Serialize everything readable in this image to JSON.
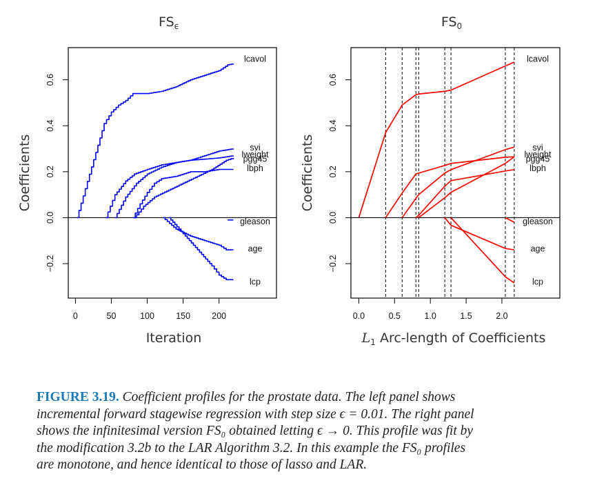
{
  "figure": {
    "caption_label": "FIGURE 3.19.",
    "caption_lines": [
      " Coefficient profiles for the prostate data. The left panel shows",
      "incremental forward stagewise regression with step size ϵ = 0.01. The right panel",
      "shows the infinitesimal version FS₀ obtained letting ϵ → 0. This profile was fit by",
      "the modification 3.2b to the LAR Algorithm 3.2. In this example the FS₀ profiles",
      "are monotone, and hence identical to those of lasso and LAR."
    ]
  },
  "chart_data": [
    {
      "type": "line",
      "style": "step",
      "title": "FSϵ",
      "title_main": "FS",
      "title_sub": "ϵ",
      "xlabel": "Iteration",
      "ylabel": "Coefficients",
      "xlim": [
        -10,
        280
      ],
      "ylim": [
        -0.35,
        0.74
      ],
      "xticks": [
        0,
        50,
        100,
        150,
        200
      ],
      "xtick_labels": [
        "0",
        "50",
        "100",
        "150",
        "200"
      ],
      "yticks": [
        -0.2,
        0.0,
        0.2,
        0.4,
        0.6
      ],
      "ytick_labels": [
        "-0.2",
        "0.0",
        "0.2",
        "0.4",
        "0.6"
      ],
      "color": "#0000ff",
      "hline_zero": true,
      "series": [
        {
          "name": "lcavol",
          "label_y": 0.69,
          "x": [
            2,
            40,
            50,
            60,
            70,
            80,
            100,
            120,
            140,
            160,
            180,
            200,
            212,
            220
          ],
          "y": [
            0.0,
            0.41,
            0.46,
            0.49,
            0.51,
            0.54,
            0.54,
            0.55,
            0.57,
            0.6,
            0.62,
            0.64,
            0.665,
            0.67
          ]
        },
        {
          "name": "svi",
          "label_y": 0.305,
          "x": [
            55,
            70,
            85,
            100,
            120,
            140,
            160,
            180,
            200,
            220
          ],
          "y": [
            0.0,
            0.09,
            0.15,
            0.19,
            0.22,
            0.24,
            0.25,
            0.27,
            0.29,
            0.3
          ]
        },
        {
          "name": "lweight",
          "label_y": 0.275,
          "x": [
            42,
            55,
            70,
            82,
            100,
            120,
            140,
            160,
            200,
            220
          ],
          "y": [
            0.0,
            0.1,
            0.16,
            0.19,
            0.21,
            0.23,
            0.24,
            0.25,
            0.26,
            0.27
          ]
        },
        {
          "name": "pgg45",
          "label_y": 0.255,
          "x": [
            82,
            95,
            110,
            130,
            150,
            170,
            190,
            210,
            220
          ],
          "y": [
            0.0,
            0.05,
            0.09,
            0.12,
            0.15,
            0.18,
            0.21,
            0.25,
            0.26
          ]
        },
        {
          "name": "lbph",
          "label_y": 0.215,
          "x": [
            80,
            90,
            100,
            110,
            120,
            140,
            160,
            180,
            200,
            220
          ],
          "y": [
            0.0,
            0.06,
            0.11,
            0.15,
            0.17,
            0.18,
            0.2,
            0.2,
            0.21,
            0.21
          ]
        },
        {
          "name": "gleason",
          "label_y": -0.017,
          "x": [
            212,
            220
          ],
          "y": [
            -0.01,
            -0.01
          ]
        },
        {
          "name": "age",
          "label_y": -0.135,
          "x": [
            122,
            140,
            160,
            180,
            200,
            210,
            220
          ],
          "y": [
            0.0,
            -0.05,
            -0.08,
            -0.1,
            -0.12,
            -0.14,
            -0.14
          ]
        },
        {
          "name": "lcp",
          "label_y": -0.28,
          "x": [
            130,
            150,
            170,
            190,
            200,
            210,
            220
          ],
          "y": [
            0.0,
            -0.07,
            -0.14,
            -0.21,
            -0.25,
            -0.27,
            -0.27
          ]
        }
      ]
    },
    {
      "type": "line",
      "title": "FS₀",
      "title_main": "FS",
      "title_sub": "0",
      "xlabel_math": "L",
      "xlabel_sub": "1",
      "xlabel_text": " Arc-length of Coefficients",
      "xlabel": "L1 Arc-length of Coefficients",
      "ylabel": "Coefficients",
      "xlim": [
        -0.11,
        2.81
      ],
      "ylim": [
        -0.35,
        0.74
      ],
      "xticks": [
        0.0,
        0.5,
        1.0,
        1.5,
        2.0
      ],
      "xtick_labels": [
        "0.0",
        "0.5",
        "1.0",
        "1.5",
        "2.0"
      ],
      "yticks": [
        -0.2,
        0.0,
        0.2,
        0.4,
        0.6
      ],
      "ytick_labels": [
        "-0.2",
        "0.0",
        "0.2",
        "0.4",
        "0.6"
      ],
      "color": "#ff0000",
      "hline_zero": true,
      "vlines_dashed": [
        0.375,
        0.606,
        0.798,
        0.837,
        1.202,
        1.288,
        2.048,
        2.173
      ],
      "series": [
        {
          "name": "lcavol",
          "label_y": 0.69,
          "x": [
            0.0,
            0.375,
            0.606,
            0.798,
            0.837,
            1.202,
            1.288,
            2.048,
            2.173
          ],
          "y": [
            0.0,
            0.37,
            0.49,
            0.535,
            0.538,
            0.55,
            0.555,
            0.66,
            0.677
          ]
        },
        {
          "name": "svi",
          "label_y": 0.305,
          "x": [
            0.606,
            0.798,
            0.837,
            1.202,
            1.288,
            2.048,
            2.173
          ],
          "y": [
            0.0,
            0.084,
            0.1,
            0.194,
            0.209,
            0.296,
            0.307
          ]
        },
        {
          "name": "lweight",
          "label_y": 0.275,
          "x": [
            0.375,
            0.606,
            0.798,
            0.837,
            1.202,
            1.288,
            2.048,
            2.173
          ],
          "y": [
            0.0,
            0.107,
            0.19,
            0.194,
            0.227,
            0.236,
            0.263,
            0.265
          ]
        },
        {
          "name": "pgg45",
          "label_y": 0.255,
          "x": [
            0.837,
            1.202,
            1.288,
            2.048,
            2.173
          ],
          "y": [
            0.0,
            0.087,
            0.11,
            0.236,
            0.265
          ]
        },
        {
          "name": "lbph",
          "label_y": 0.215,
          "x": [
            0.798,
            0.837,
            1.202,
            1.288,
            2.048,
            2.173
          ],
          "y": [
            0.0,
            0.01,
            0.137,
            0.161,
            0.203,
            0.209
          ]
        },
        {
          "name": "gleason",
          "label_y": -0.017,
          "x": [
            2.048,
            2.173
          ],
          "y": [
            0.0,
            -0.02
          ]
        },
        {
          "name": "age",
          "label_y": -0.135,
          "x": [
            1.202,
            1.288,
            2.048,
            2.173
          ],
          "y": [
            0.0,
            -0.033,
            -0.134,
            -0.14
          ]
        },
        {
          "name": "lcp",
          "label_y": -0.28,
          "x": [
            1.288,
            2.048,
            2.173
          ],
          "y": [
            0.0,
            -0.257,
            -0.284
          ]
        }
      ]
    }
  ]
}
